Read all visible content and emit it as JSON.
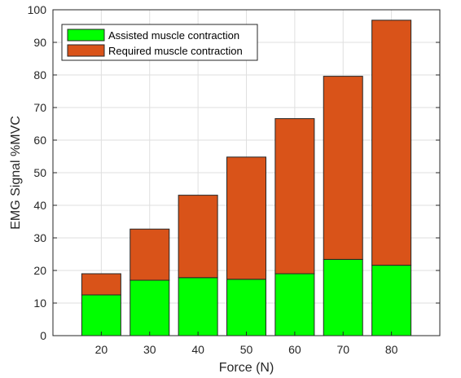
{
  "chart_data": {
    "type": "bar",
    "stacked": true,
    "categories": [
      "20",
      "30",
      "40",
      "50",
      "60",
      "70",
      "80"
    ],
    "series": [
      {
        "name": "Assisted muscle contraction",
        "values": [
          12.5,
          17,
          17.8,
          17.3,
          19,
          23.4,
          21.6
        ],
        "color": "#00ff00"
      },
      {
        "name": "Required muscle contraction",
        "values": [
          6.5,
          15.7,
          25.3,
          37.5,
          47.6,
          56.2,
          75.2
        ],
        "color": "#d95319"
      }
    ],
    "totals": [
      19,
      32.7,
      43.1,
      54.8,
      66.6,
      79.6,
      96.8
    ],
    "xlabel": "Force (N)",
    "ylabel": "EMG Signal %MVC",
    "ylim": [
      0,
      100
    ],
    "yticks": [
      "0",
      "10",
      "20",
      "30",
      "40",
      "50",
      "60",
      "70",
      "80",
      "90",
      "100"
    ],
    "grid": true,
    "legend_position": "top-left"
  }
}
